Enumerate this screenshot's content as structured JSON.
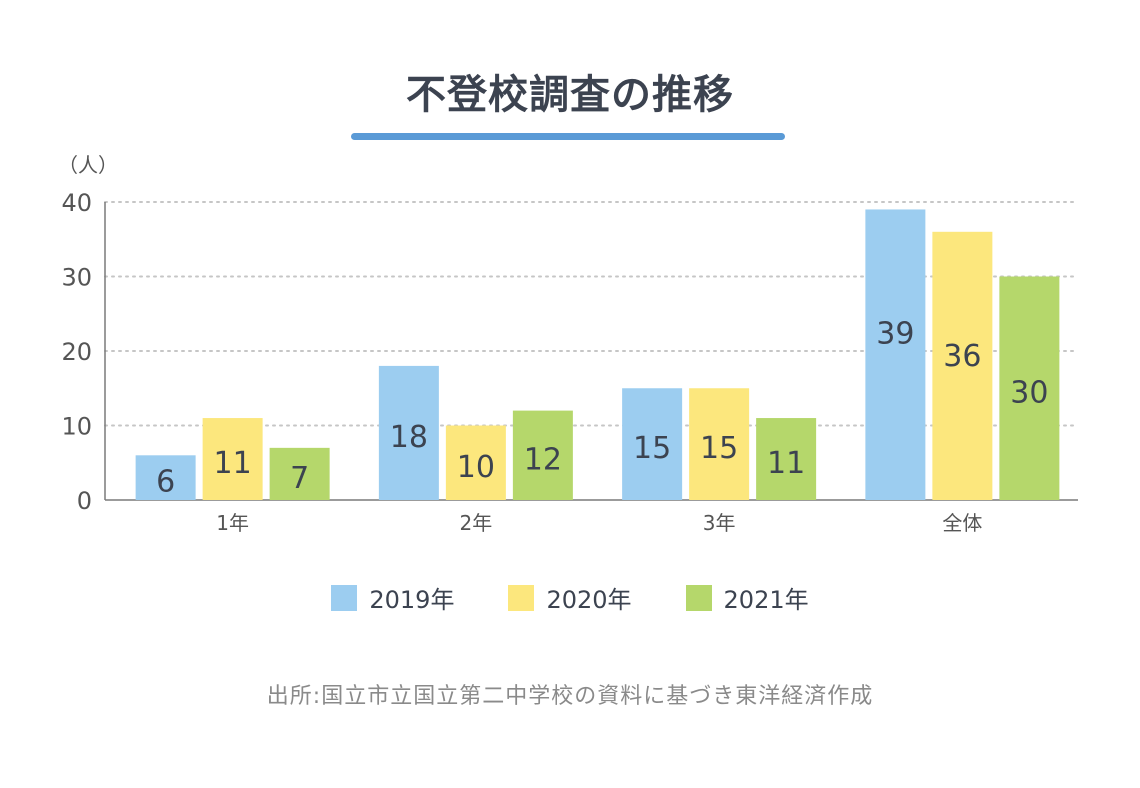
{
  "chart_title": "不登校調査の推移",
  "colors": {
    "underline": "#5a9ad6",
    "grid": "#c6c6c6",
    "axis": "#7a7a7a",
    "tick_text": "#555555",
    "value_text": "#3c4350"
  },
  "chart_data": {
    "type": "bar",
    "title": "不登校調査の推移",
    "ylabel": "（人）",
    "xlabel": "",
    "ylim": [
      0,
      40
    ],
    "yticks": [
      0,
      10,
      20,
      30,
      40
    ],
    "grid": true,
    "categories": [
      "1年",
      "2年",
      "3年",
      "全体"
    ],
    "series": [
      {
        "name": "2019年",
        "color": "#9ccdf0",
        "values": [
          6,
          18,
          15,
          39
        ]
      },
      {
        "name": "2020年",
        "color": "#fce77d",
        "values": [
          11,
          10,
          15,
          36
        ]
      },
      {
        "name": "2021年",
        "color": "#b5d76b",
        "values": [
          7,
          12,
          11,
          30
        ]
      }
    ],
    "legend_position": "bottom"
  },
  "source_note": "出所:国立市立国立第二中学校の資料に基づき東洋経済作成"
}
